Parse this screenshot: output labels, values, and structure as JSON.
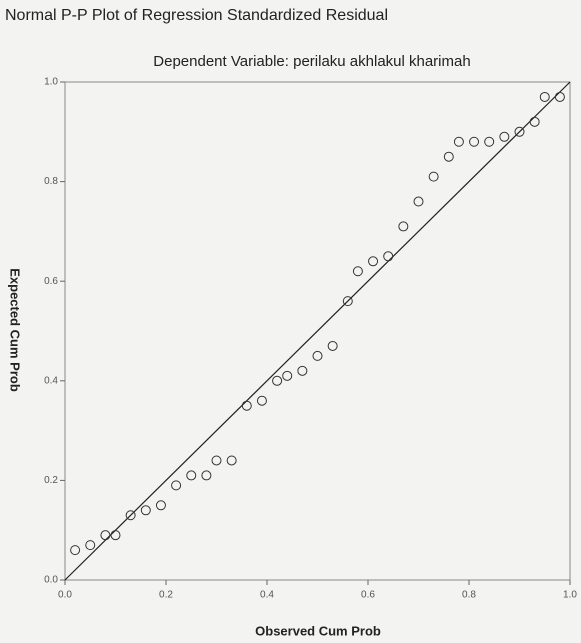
{
  "chart_data": {
    "type": "scatter",
    "title": "Normal P-P Plot of Regression Standardized Residual",
    "subtitle": "Dependent Variable: perilaku akhlakul kharimah",
    "xlabel": "Observed Cum Prob",
    "ylabel": "Expected Cum Prob",
    "x": [
      0.02,
      0.05,
      0.08,
      0.1,
      0.13,
      0.16,
      0.19,
      0.22,
      0.25,
      0.28,
      0.3,
      0.33,
      0.36,
      0.39,
      0.42,
      0.44,
      0.47,
      0.5,
      0.53,
      0.56,
      0.58,
      0.61,
      0.64,
      0.67,
      0.7,
      0.73,
      0.76,
      0.78,
      0.81,
      0.84,
      0.87,
      0.9,
      0.93,
      0.95,
      0.98
    ],
    "values": [
      0.06,
      0.07,
      0.09,
      0.09,
      0.13,
      0.14,
      0.15,
      0.19,
      0.21,
      0.21,
      0.24,
      0.24,
      0.35,
      0.36,
      0.4,
      0.41,
      0.42,
      0.45,
      0.47,
      0.56,
      0.62,
      0.64,
      0.65,
      0.71,
      0.76,
      0.81,
      0.85,
      0.88,
      0.88,
      0.88,
      0.89,
      0.9,
      0.92,
      0.97,
      0.97
    ],
    "color": "#333333",
    "diagonal": true,
    "xlim": [
      0,
      1
    ],
    "ylim": [
      0,
      1
    ],
    "xticks": [
      {
        "value": 0,
        "label": "0.0"
      },
      {
        "value": 0.2,
        "label": "0.2"
      },
      {
        "value": 0.4,
        "label": "0.4"
      },
      {
        "value": 0.6,
        "label": "0.6"
      },
      {
        "value": 0.8,
        "label": "0.8"
      },
      {
        "value": 1,
        "label": "1.0"
      }
    ],
    "yticks": [
      {
        "value": 0,
        "label": "0.0"
      },
      {
        "value": 0.2,
        "label": "0.2"
      },
      {
        "value": 0.4,
        "label": "0.4"
      },
      {
        "value": 0.6,
        "label": "0.6"
      },
      {
        "value": 0.8,
        "label": "0.8"
      },
      {
        "value": 1,
        "label": "1.0"
      }
    ]
  }
}
